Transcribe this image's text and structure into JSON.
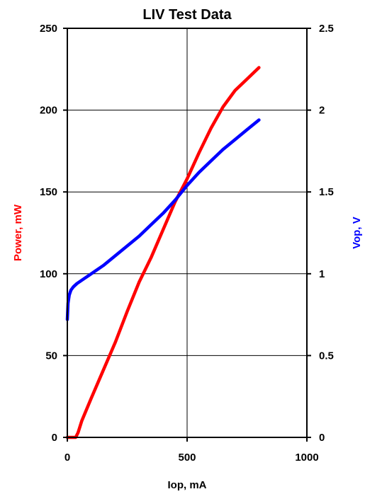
{
  "chart_data": {
    "type": "line",
    "title": "LIV Test Data",
    "xlabel": "Iop, mA",
    "ylabel_left": "Power, mW",
    "ylabel_right": "Vop, V",
    "xlim": [
      0,
      1000
    ],
    "ylim_left": [
      0,
      250
    ],
    "ylim_right": [
      0,
      2.5
    ],
    "x_ticks": [
      "0",
      "500",
      "1000"
    ],
    "y_left_ticks": [
      "0",
      "50",
      "100",
      "150",
      "200",
      "250"
    ],
    "y_right_ticks": [
      "0",
      "0.5",
      "1",
      "1.5",
      "2",
      "2.5"
    ],
    "grid": true,
    "series": [
      {
        "axis": "left",
        "color": "#ff0000",
        "x": [
          0,
          20,
          35,
          45,
          60,
          100,
          150,
          200,
          250,
          300,
          350,
          400,
          450,
          500,
          550,
          600,
          650,
          700,
          750,
          800
        ],
        "y": [
          0,
          0,
          0,
          3,
          10,
          24,
          41,
          58,
          77,
          95,
          110,
          127,
          144,
          158,
          174,
          189,
          202,
          212,
          219,
          226
        ]
      },
      {
        "axis": "right",
        "color": "#0000ff",
        "x": [
          0,
          3,
          8,
          15,
          25,
          40,
          70,
          100,
          150,
          200,
          250,
          300,
          350,
          400,
          450,
          500,
          550,
          600,
          650,
          700,
          750,
          800
        ],
        "y": [
          0.72,
          0.82,
          0.87,
          0.9,
          0.92,
          0.94,
          0.97,
          1.0,
          1.05,
          1.11,
          1.17,
          1.23,
          1.3,
          1.37,
          1.45,
          1.54,
          1.62,
          1.69,
          1.76,
          1.82,
          1.88,
          1.94
        ]
      }
    ]
  }
}
